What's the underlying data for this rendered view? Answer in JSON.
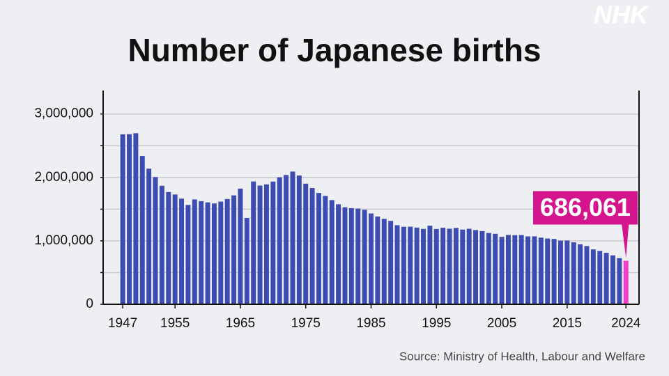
{
  "chart_data": {
    "type": "bar",
    "title": "Number of Japanese births",
    "source": "Source: Ministry of Health, Labour and Welfare",
    "logo": "NHK",
    "x": [
      1947,
      1948,
      1949,
      1950,
      1951,
      1952,
      1953,
      1954,
      1955,
      1956,
      1957,
      1958,
      1959,
      1960,
      1961,
      1962,
      1963,
      1964,
      1965,
      1966,
      1967,
      1968,
      1969,
      1970,
      1971,
      1972,
      1973,
      1974,
      1975,
      1976,
      1977,
      1978,
      1979,
      1980,
      1981,
      1982,
      1983,
      1984,
      1985,
      1986,
      1987,
      1988,
      1989,
      1990,
      1991,
      1992,
      1993,
      1994,
      1995,
      1996,
      1997,
      1998,
      1999,
      2000,
      2001,
      2002,
      2003,
      2004,
      2005,
      2006,
      2007,
      2008,
      2009,
      2010,
      2011,
      2012,
      2013,
      2014,
      2015,
      2016,
      2017,
      2018,
      2019,
      2020,
      2021,
      2022,
      2023,
      2024
    ],
    "values": [
      2678792,
      2681624,
      2696638,
      2337507,
      2137689,
      2005162,
      1868040,
      1769580,
      1730692,
      1665278,
      1566713,
      1653469,
      1626088,
      1606041,
      1589372,
      1618616,
      1659521,
      1716761,
      1823697,
      1360974,
      1935647,
      1871839,
      1889815,
      1934239,
      2000973,
      2038682,
      2091983,
      2029989,
      1901440,
      1832617,
      1755100,
      1708643,
      1642580,
      1576889,
      1529455,
      1515392,
      1508687,
      1489780,
      1431577,
      1382946,
      1346658,
      1314006,
      1246802,
      1221585,
      1223245,
      1208989,
      1188282,
      1238328,
      1187064,
      1206555,
      1191665,
      1203147,
      1177669,
      1190547,
      1170662,
      1153855,
      1123610,
      1110721,
      1062530,
      1092674,
      1089818,
      1091156,
      1070036,
      1071304,
      1050806,
      1037231,
      1029816,
      1003539,
      1005721,
      976978,
      946146,
      918400,
      865239,
      840835,
      811622,
      770759,
      727288,
      686061
    ],
    "value_labels": [
      null,
      null,
      null,
      null,
      null,
      null,
      null,
      null,
      null,
      null,
      null,
      null,
      null,
      null,
      null,
      null,
      null,
      null,
      null,
      null,
      null,
      null,
      null,
      null,
      null,
      null,
      null,
      null,
      null,
      null,
      null,
      null,
      null,
      null,
      null,
      null,
      null,
      null,
      null,
      null,
      null,
      null,
      null,
      null,
      null,
      null,
      null,
      null,
      null,
      null,
      null,
      null,
      null,
      null,
      null,
      null,
      null,
      null,
      null,
      null,
      null,
      null,
      null,
      null,
      null,
      null,
      null,
      null,
      null,
      null,
      null,
      null,
      null,
      null,
      null,
      null,
      null,
      "686,061"
    ],
    "color": "#3d4cb0",
    "highlight_color": "#f03cc8",
    "label_color": "#d4148c",
    "xlim": [
      1944,
      2026
    ],
    "xticks": [
      1947,
      1955,
      1965,
      1975,
      1985,
      1995,
      2005,
      2015,
      2024
    ],
    "ylim": [
      0,
      3370000
    ],
    "yticks": [
      0,
      {
        "value": 1000000,
        "label": "1,000,000"
      },
      {
        "value": 2000000,
        "label": "2,000,000"
      },
      {
        "value": 3000000,
        "label": "3,000,000"
      }
    ],
    "minor_yticks": [
      500000,
      1500000,
      2500000
    ],
    "grid": true
  }
}
